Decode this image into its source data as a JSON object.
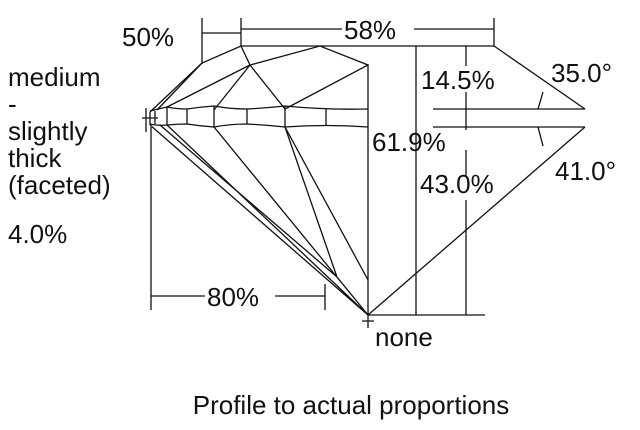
{
  "diagram": {
    "labels": {
      "crown_offset": "50%",
      "table": "58%",
      "girdle": [
        "medium",
        "-",
        "slightly",
        "thick",
        "(faceted)",
        "4.0%"
      ],
      "crown_height": "14.5%",
      "crown_angle": "35.0°",
      "total_depth": "61.9%",
      "pavilion_depth": "43.0%",
      "pavilion_angle": "41.0°",
      "lower_half": "80%",
      "culet": "none"
    },
    "caption": "Profile to actual proportions",
    "line_color": "#111111"
  }
}
